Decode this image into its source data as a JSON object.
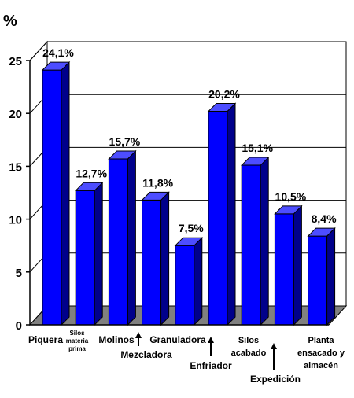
{
  "chart_data": {
    "type": "bar",
    "ylabel": "%",
    "ylim": [
      0,
      25
    ],
    "yticks": [
      0,
      5,
      10,
      15,
      20,
      25
    ],
    "grid": true,
    "style": "3d",
    "bar_color": "#0000ff",
    "floor_color": "#808080",
    "categories": [
      "Piquera",
      "Silos materia prima",
      "Molinos",
      "Mezcladora",
      "Granuladora",
      "Enfriador",
      "Silos acabado",
      "Expedición",
      "Planta ensacado y almacén"
    ],
    "values": [
      24.1,
      12.7,
      15.7,
      11.8,
      7.5,
      20.2,
      15.1,
      10.5,
      8.4
    ],
    "data_labels": [
      "24,1%",
      "12,7%",
      "15,7%",
      "11,8%",
      "7,5%",
      "20,2%",
      "15,1%",
      "10,5%",
      "8,4%"
    ],
    "tick_labels": [
      [
        "Piquera"
      ],
      [
        "Silos",
        "materia",
        "prima"
      ],
      [
        "Molinos"
      ],
      [
        "Mezcladora"
      ],
      [
        "Granuladora"
      ],
      [
        "Enfriador"
      ],
      [
        "Silos",
        "acabado"
      ],
      [
        "Expedición"
      ],
      [
        "Planta",
        "ensacado y",
        "almacén"
      ]
    ],
    "arrow_markers": [
      "Mezcladora",
      "Enfriador",
      "Expedición"
    ]
  }
}
